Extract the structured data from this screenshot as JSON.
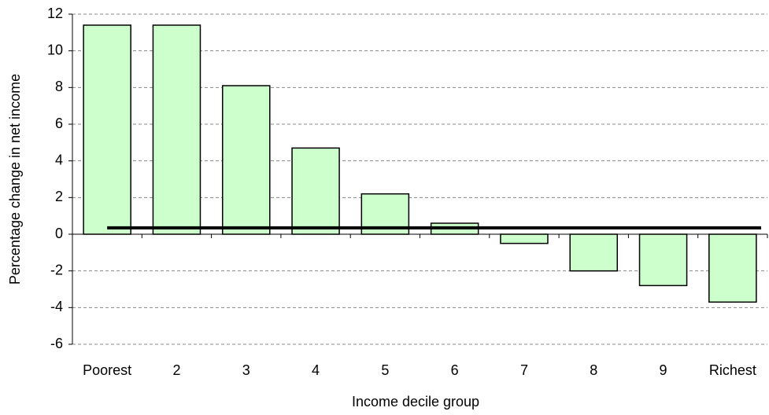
{
  "chart_data": {
    "type": "bar",
    "categories": [
      "Poorest",
      "2",
      "3",
      "4",
      "5",
      "6",
      "7",
      "8",
      "9",
      "Richest"
    ],
    "values": [
      11.4,
      11.4,
      8.1,
      4.7,
      2.2,
      0.6,
      -0.5,
      -2.0,
      -2.8,
      -3.7
    ],
    "color": "#ccffcc",
    "average_line": 0.35,
    "ylim": [
      -6,
      12
    ],
    "yticks": [
      -6,
      -4,
      -2,
      0,
      2,
      4,
      6,
      8,
      10,
      12
    ],
    "grid": true,
    "xlabel": "Income decile group",
    "ylabel": "Percentage change in net income"
  }
}
